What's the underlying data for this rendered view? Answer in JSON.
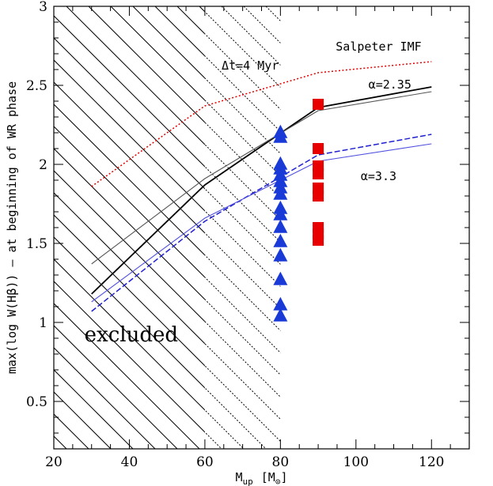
{
  "chart_data": {
    "type": "line",
    "title": "",
    "xlabel": "M",
    "xlabel_sub": "up",
    "xlabel_unit": "[M",
    "xlabel_unit_sub": "⊙",
    "xlabel_unit_close": "]",
    "ylabel": "max(log W(Hβ))  – at beginning of WR phase",
    "xlim": [
      20,
      130
    ],
    "ylim": [
      0.2,
      3.0
    ],
    "x_ticks": [
      20,
      40,
      60,
      80,
      100,
      120
    ],
    "x_tick_labels": [
      "20",
      "40",
      "60",
      "80",
      "100",
      "120"
    ],
    "y_ticks": [
      0.5,
      1,
      1.5,
      2,
      2.5,
      3
    ],
    "y_tick_labels": [
      "0.5",
      "1",
      "1.5",
      "2",
      "2.5",
      "3"
    ],
    "grid": false,
    "colors": {
      "salpeter_dotted": "#e00000",
      "alpha235": "#000000",
      "alpha235_thin": "#555555",
      "alpha33": "#2020d0",
      "alpha33_thin": "#5050e0",
      "triangles": "#1a3ad8",
      "squares": "#e80000"
    },
    "excluded_region": {
      "solid_hatch_to": 60,
      "dotted_hatch_to": 80,
      "label": "excluded"
    },
    "series": [
      {
        "style": "dotted",
        "color": "salpeter_dotted",
        "x": [
          30,
          60,
          90,
          120
        ],
        "y": [
          1.86,
          2.37,
          2.58,
          2.65
        ]
      },
      {
        "style": "solid",
        "color": "alpha235",
        "x": [
          30,
          60,
          90,
          120
        ],
        "y": [
          1.18,
          1.87,
          2.36,
          2.49
        ]
      },
      {
        "style": "solid-thin",
        "color": "alpha235_thin",
        "x": [
          30,
          60,
          90,
          120
        ],
        "y": [
          1.37,
          1.91,
          2.34,
          2.46
        ]
      },
      {
        "style": "dashed",
        "color": "alpha33",
        "x": [
          30,
          60,
          90,
          120
        ],
        "y": [
          1.07,
          1.64,
          2.06,
          2.19
        ]
      },
      {
        "style": "solid-thin",
        "color": "alpha33_thin",
        "x": [
          30,
          60,
          90,
          120
        ],
        "y": [
          1.13,
          1.66,
          2.02,
          2.13
        ]
      }
    ],
    "triangles": {
      "x": 80,
      "y": [
        2.2,
        2.17,
        2.0,
        1.97,
        1.93,
        1.89,
        1.85,
        1.81,
        1.72,
        1.68,
        1.6,
        1.51,
        1.42,
        1.27,
        1.11,
        1.04
      ]
    },
    "squares": {
      "x": 90,
      "y": [
        2.38,
        2.1,
        1.99,
        1.94,
        1.85,
        1.8,
        1.6,
        1.56,
        1.52
      ]
    },
    "annotations": [
      {
        "text": "Salpeter IMF",
        "x": 106,
        "y": 2.72
      },
      {
        "text": "Δt=4 Myr",
        "x": 72,
        "y": 2.6
      },
      {
        "text": "α=2.35",
        "x": 109,
        "y": 2.48
      },
      {
        "text": "α=3.3",
        "x": 106,
        "y": 1.9
      }
    ]
  }
}
